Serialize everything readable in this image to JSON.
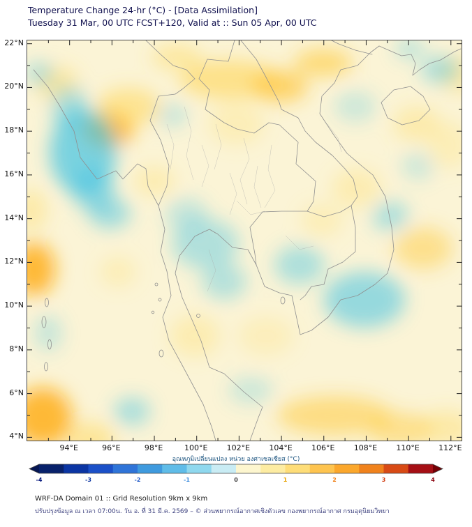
{
  "header": {
    "title": "Temperature Change 24-hr (°C) - [Data Assimilation]",
    "subtitle": "Tuesday 31 Mar, 00 UTC FCST+120, Valid at :: Sun 05 Apr, 00 UTC"
  },
  "map": {
    "y_ticks": [
      "22°N",
      "20°N",
      "18°N",
      "16°N",
      "14°N",
      "12°N",
      "10°N",
      "8°N",
      "6°N",
      "4°N"
    ],
    "x_ticks": [
      "94°E",
      "96°E",
      "98°E",
      "100°E",
      "102°E",
      "104°E",
      "106°E",
      "108°E",
      "110°E",
      "112°E"
    ],
    "background_color": "#fbf4d6",
    "warm_color": "#ffab10",
    "cool_color": "#45c3e3"
  },
  "colorbar": {
    "title": "อุณหภูมิเปลี่ยนแปลง หน่วย องศาเซลเซียส (°C)",
    "ticks": [
      "-4",
      "-3",
      "-2",
      "-1",
      "0",
      "1",
      "2",
      "3",
      "4"
    ],
    "tick_colors": [
      "#00127a",
      "#0b35a3",
      "#2059c9",
      "#3f8ede",
      "#444444",
      "#e8a200",
      "#f07d12",
      "#d13c10",
      "#8c0410"
    ],
    "colors": [
      "#08216b",
      "#0b35a3",
      "#1b50c8",
      "#2f74d8",
      "#3f9ade",
      "#5fbce8",
      "#8fd8ee",
      "#c9ecf4",
      "#fdf6cf",
      "#fdeca2",
      "#fedd78",
      "#fec44f",
      "#fba72c",
      "#f0821c",
      "#d84a15",
      "#a50f15"
    ],
    "left_arrow_color": "#061753",
    "right_arrow_color": "#730005",
    "outline_color": "#444444"
  },
  "footer": {
    "line1": "WRF-DA Domain 01 :: Grid Resolution 9km x 9km",
    "line2": "ปรับปรุงข้อมูล ณ เวลา 07:00น. วัน อ. ที่ 31 มี.ค. 2569 – © ส่วนพยากรณ์อากาศเชิงตัวเลข กองพยากรณ์อากาศ กรมอุตุนิยมวิทยา"
  }
}
